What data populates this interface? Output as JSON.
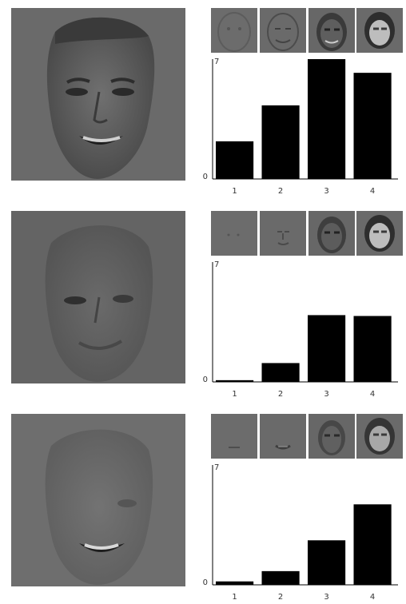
{
  "chart_data": [
    {
      "type": "bar",
      "categories": [
        "1",
        "2",
        "3",
        "4"
      ],
      "values": [
        2.2,
        4.3,
        7.0,
        6.2
      ],
      "ylim": [
        0,
        7
      ],
      "y_tick_labels": [
        "0",
        "7"
      ],
      "title": "",
      "xlabel": "",
      "ylabel": "",
      "grid": false,
      "bar_color": "#000000"
    },
    {
      "type": "bar",
      "categories": [
        "1",
        "2",
        "3",
        "4"
      ],
      "values": [
        0.1,
        1.1,
        3.9,
        3.85
      ],
      "ylim": [
        0,
        7
      ],
      "y_tick_labels": [
        "0",
        "7"
      ],
      "title": "",
      "xlabel": "",
      "ylabel": "",
      "grid": false,
      "bar_color": "#000000"
    },
    {
      "type": "bar",
      "categories": [
        "1",
        "2",
        "3",
        "4"
      ],
      "values": [
        0.2,
        0.8,
        2.6,
        4.7
      ],
      "ylim": [
        0,
        7
      ],
      "y_tick_labels": [
        "0",
        "7"
      ],
      "title": "",
      "xlabel": "",
      "ylabel": "",
      "grid": false,
      "bar_color": "#000000"
    }
  ],
  "colors": {
    "background_gray": "#6b6b6b",
    "bar": "#000000",
    "axis": "#000000"
  },
  "icons": {
    "face_image": "face-reconstruction",
    "component_thumbnail": "face-component-thumbnail"
  }
}
